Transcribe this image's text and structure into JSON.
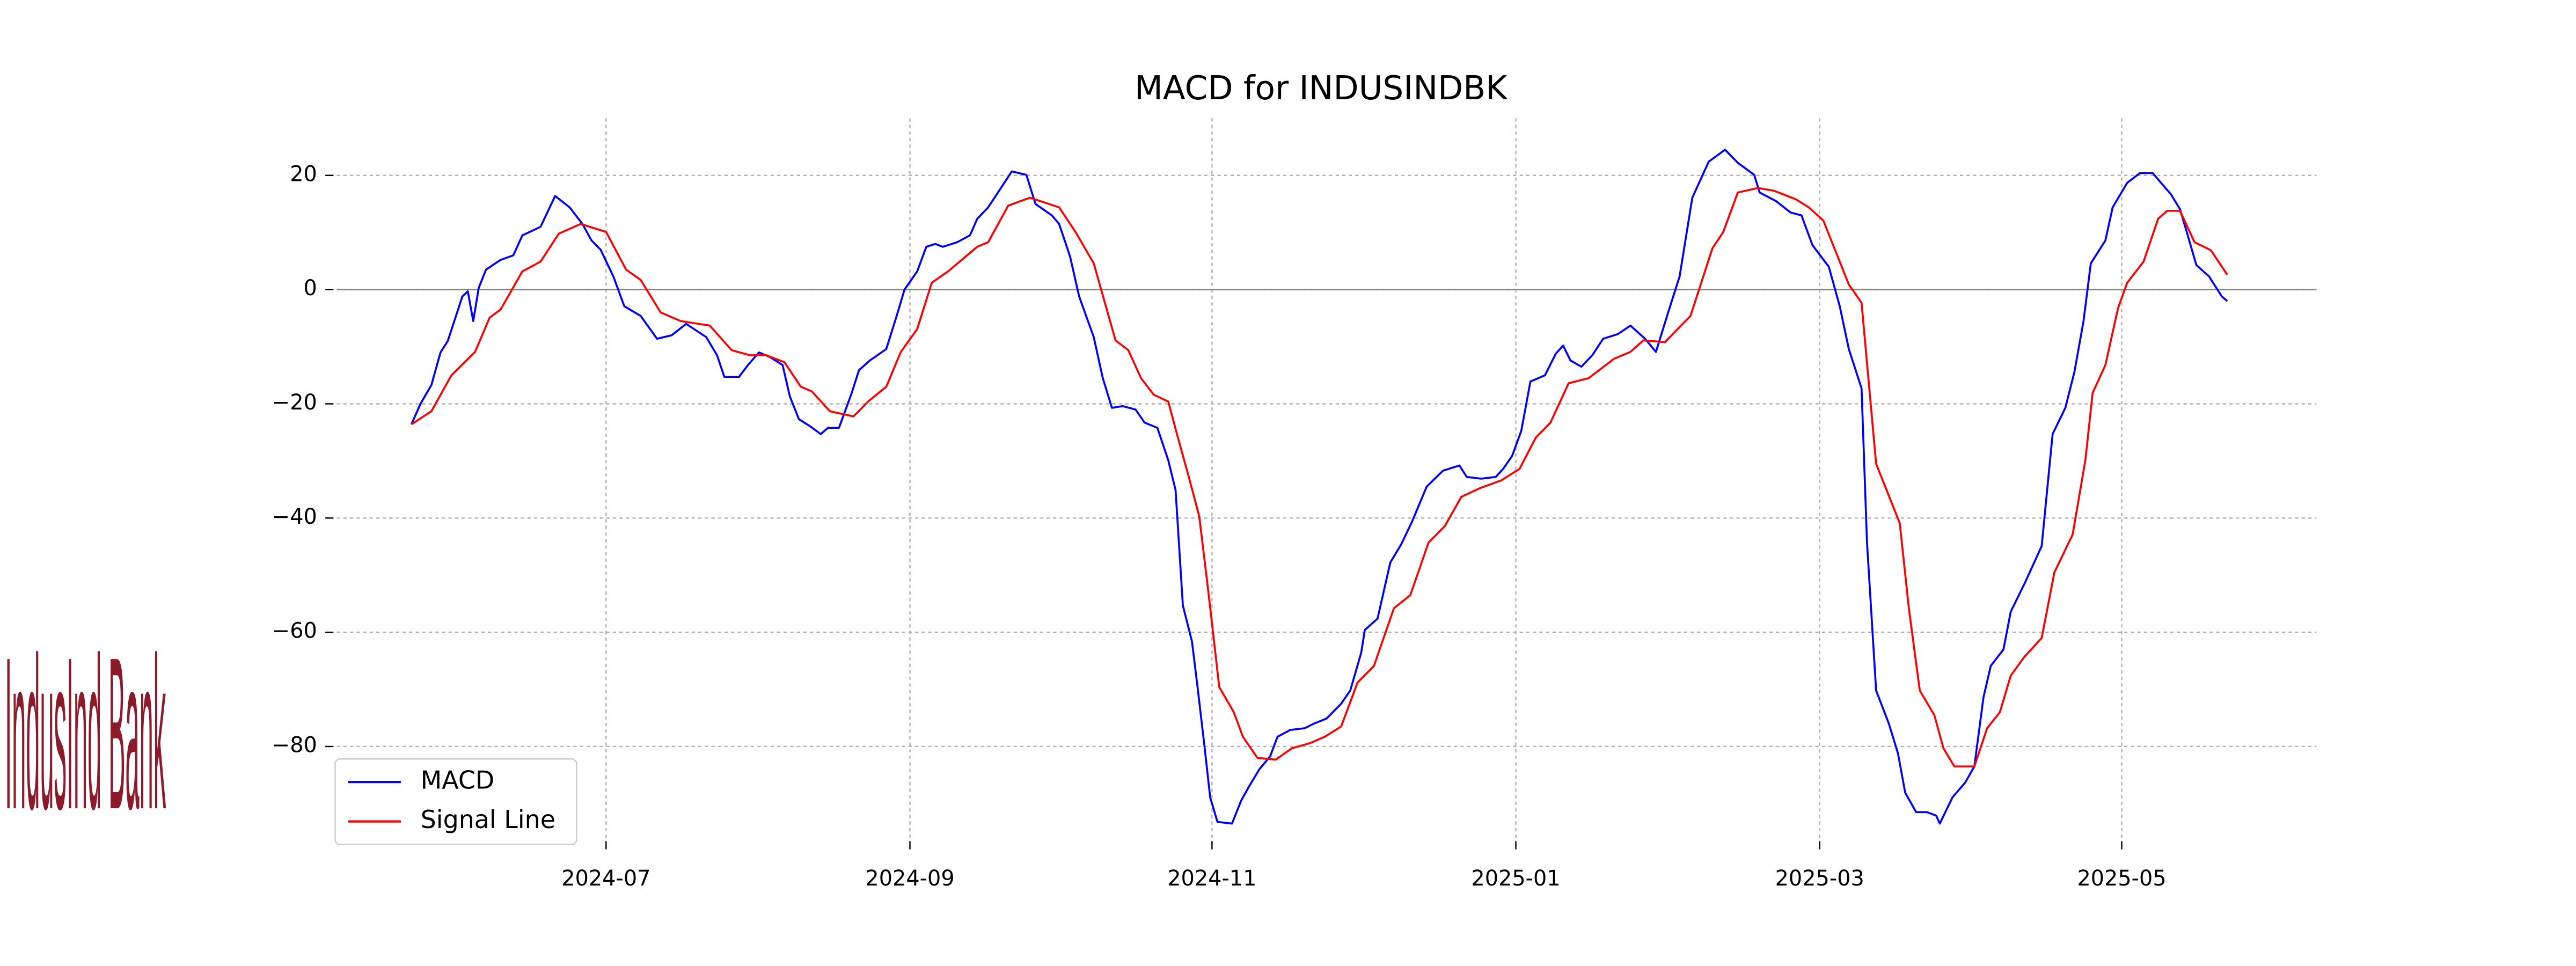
{
  "chart_data": {
    "type": "line",
    "title": "MACD for INDUSINDBK",
    "logo_text": "IndusInd Bank",
    "xlim": [
      2024.352,
      2025.44
    ],
    "ylim": [
      -96,
      30
    ],
    "xticks": [
      {
        "value": 2024.5,
        "label": "2024-07"
      },
      {
        "value": 2024.667,
        "label": "2024-09"
      },
      {
        "value": 2024.833,
        "label": "2024-11"
      },
      {
        "value": 2025.0,
        "label": "2025-01"
      },
      {
        "value": 2025.167,
        "label": "2025-03"
      },
      {
        "value": 2025.333,
        "label": "2025-05"
      }
    ],
    "yticks": [
      {
        "value": -80,
        "label": "−80"
      },
      {
        "value": -60,
        "label": "−60"
      },
      {
        "value": -40,
        "label": "−40"
      },
      {
        "value": -20,
        "label": "−20"
      },
      0,
      20
    ],
    "hlines": [
      0
    ],
    "grid": true,
    "legend": "lower left",
    "series": [
      {
        "name": "MACD",
        "color": "#0000ff",
        "x": [
          2024.393,
          2024.398,
          2024.404,
          2024.409,
          2024.413,
          2024.421,
          2024.424,
          2024.427,
          2024.43,
          2024.434,
          2024.442,
          2024.449,
          2024.454,
          2024.464,
          2024.472,
          2024.48,
          2024.487,
          2024.492,
          2024.497,
          2024.504,
          2024.51,
          2024.519,
          2024.528,
          2024.536,
          2024.544,
          2024.555,
          2024.561,
          2024.565,
          2024.573,
          2024.578,
          2024.584,
          2024.59,
          2024.597,
          2024.601,
          2024.606,
          2024.612,
          2024.618,
          2024.622,
          2024.628,
          2024.635,
          2024.639,
          2024.645,
          2024.654,
          2024.66,
          2024.664,
          2024.671,
          2024.676,
          2024.681,
          2024.685,
          2024.693,
          2024.7,
          2024.704,
          2024.71,
          2024.717,
          2024.723,
          2024.731,
          2024.736,
          2024.745,
          2024.749,
          2024.755,
          2024.76,
          2024.768,
          2024.773,
          2024.778,
          2024.784,
          2024.791,
          2024.796,
          2024.803,
          2024.809,
          2024.813,
          2024.817,
          2024.822,
          2024.825,
          2024.829,
          2024.832,
          2024.836,
          2024.844,
          2024.849,
          2024.853,
          2024.859,
          2024.865,
          2024.869,
          2024.876,
          2024.884,
          2024.889,
          2024.896,
          2024.904,
          2024.909,
          2024.915,
          2024.917,
          2024.924,
          2024.931,
          2024.937,
          2024.943,
          2024.951,
          2024.96,
          2024.969,
          2024.973,
          2024.981,
          2024.989,
          2024.993,
          2024.998,
          2025.003,
          2025.008,
          2025.016,
          2025.022,
          2025.026,
          2025.03,
          2025.036,
          2025.042,
          2025.048,
          2025.056,
          2025.063,
          2025.071,
          2025.077,
          2025.084,
          2025.09,
          2025.097,
          2025.106,
          2025.115,
          2025.122,
          2025.131,
          2025.134,
          2025.143,
          2025.151,
          2025.157,
          2025.163,
          2025.172,
          2025.178,
          2025.183,
          2025.19,
          2025.193,
          2025.198,
          2025.205,
          2025.21,
          2025.214,
          2025.22,
          2025.226,
          2025.231,
          2025.233,
          2025.24,
          2025.247,
          2025.252,
          2025.257,
          2025.261,
          2025.268,
          2025.272,
          2025.28,
          2025.289,
          2025.295,
          2025.302,
          2025.307,
          2025.312,
          2025.316,
          2025.324,
          2025.328,
          2025.336,
          2025.343,
          2025.35,
          2025.353,
          2025.36,
          2025.365,
          2025.369,
          2025.374,
          2025.381,
          2025.388,
          2025.391
        ],
        "values": [
          -23.6,
          -20,
          -16.7,
          -11,
          -9,
          -1.2,
          -0.3,
          -5.5,
          0.3,
          3.5,
          5.2,
          6,
          9.5,
          11,
          16.4,
          14.4,
          11.5,
          8.6,
          7,
          2.3,
          -2.9,
          -4.6,
          -8.6,
          -8,
          -6,
          -8.3,
          -11.5,
          -15.3,
          -15.3,
          -13.2,
          -11,
          -11.8,
          -13.2,
          -18.7,
          -22.7,
          -23.9,
          -25.3,
          -24.2,
          -24.2,
          -18.1,
          -14.1,
          -12.4,
          -10.4,
          -4.3,
          0,
          3.2,
          7.5,
          8,
          7.5,
          8.3,
          9.5,
          12.4,
          14.4,
          17.8,
          20.7,
          20.1,
          15,
          13,
          11.5,
          5.8,
          -1.2,
          -8.3,
          -15.5,
          -20.7,
          -20.4,
          -21,
          -23.3,
          -24.2,
          -29.9,
          -35.1,
          -55.3,
          -61.6,
          -69.4,
          -80.3,
          -88.9,
          -93.2,
          -93.5,
          -89.5,
          -87.2,
          -84,
          -81.7,
          -78.3,
          -77.1,
          -76.8,
          -76,
          -75.1,
          -72.5,
          -70.2,
          -63.6,
          -59.6,
          -57.6,
          -47.8,
          -44.6,
          -40.6,
          -34.5,
          -31.7,
          -30.8,
          -32.8,
          -33.1,
          -32.8,
          -31.4,
          -29.1,
          -24.7,
          -16.1,
          -15,
          -11.2,
          -9.8,
          -12.4,
          -13.5,
          -11.5,
          -8.6,
          -7.8,
          -6.3,
          -8.6,
          -10.9,
          -3.7,
          2.3,
          16.1,
          22.4,
          24.5,
          22.2,
          20.1,
          17,
          15.5,
          13.5,
          13,
          7.8,
          4,
          -2.9,
          -10.4,
          -17.3,
          -44.3,
          -70.2,
          -76,
          -81.2,
          -88.1,
          -91.5,
          -91.5,
          -92.1,
          -93.5,
          -88.9,
          -86.3,
          -83.5,
          -71.4,
          -65.9,
          -63,
          -56.4,
          -51.2,
          -44.9,
          -25.3,
          -20.7,
          -14.4,
          -5.5,
          4.6,
          8.6,
          14.4,
          18.7,
          20.4,
          20.4,
          19.3,
          16.7,
          14.1,
          9.8,
          4.3,
          2.3,
          -1.2,
          -2
        ]
      },
      {
        "name": "Signal Line",
        "color": "#ff0000",
        "x": [
          2024.393,
          2024.404,
          2024.415,
          2024.428,
          2024.436,
          2024.442,
          2024.454,
          2024.464,
          2024.474,
          2024.486,
          2024.5,
          2024.511,
          2024.519,
          2024.53,
          2024.541,
          2024.557,
          2024.569,
          2024.579,
          2024.588,
          2024.598,
          2024.607,
          2024.613,
          2024.623,
          2024.636,
          2024.644,
          2024.654,
          2024.662,
          2024.671,
          2024.679,
          2024.688,
          2024.704,
          2024.71,
          2024.721,
          2024.733,
          2024.749,
          2024.758,
          2024.768,
          2024.78,
          2024.787,
          2024.794,
          2024.801,
          2024.809,
          2024.814,
          2024.82,
          2024.826,
          2024.831,
          2024.837,
          2024.845,
          2024.85,
          2024.858,
          2024.868,
          2024.877,
          2024.887,
          2024.895,
          2024.904,
          2024.913,
          2024.922,
          2024.933,
          2024.942,
          2024.952,
          2024.961,
          2024.97,
          2024.98,
          2024.992,
          2025.002,
          2025.011,
          2025.019,
          2025.029,
          2025.04,
          2025.054,
          2025.063,
          2025.07,
          2025.082,
          2025.088,
          2025.096,
          2025.108,
          2025.114,
          2025.122,
          2025.133,
          2025.142,
          2025.154,
          2025.161,
          2025.169,
          2025.183,
          2025.19,
          2025.198,
          2025.211,
          2025.216,
          2025.222,
          2025.23,
          2025.235,
          2025.241,
          2025.252,
          2025.259,
          2025.266,
          2025.272,
          2025.279,
          2025.289,
          2025.296,
          2025.306,
          2025.313,
          2025.317,
          2025.324,
          2025.331,
          2025.336,
          2025.345,
          2025.353,
          2025.358,
          2025.365,
          2025.373,
          2025.382,
          2025.391
        ],
        "values": [
          -23.6,
          -21.3,
          -15,
          -10.9,
          -4.9,
          -3.5,
          3.2,
          4.9,
          9.8,
          11.5,
          10.1,
          3.5,
          1.7,
          -4,
          -5.5,
          -6.3,
          -10.6,
          -11.5,
          -11.5,
          -12.7,
          -17,
          -17.8,
          -21.3,
          -22.2,
          -19.6,
          -17,
          -10.9,
          -6.9,
          1.2,
          3.2,
          7.5,
          8.3,
          14.7,
          16.1,
          14.4,
          10.1,
          4.6,
          -8.9,
          -10.6,
          -15.5,
          -18.4,
          -19.6,
          -25.6,
          -32.5,
          -39.7,
          -52.9,
          -69.6,
          -74,
          -78.3,
          -82,
          -82.3,
          -80.3,
          -79.4,
          -78.3,
          -76.5,
          -68.8,
          -65.9,
          -55.8,
          -53.5,
          -44.3,
          -41.4,
          -36.3,
          -34.8,
          -33.4,
          -31.4,
          -25.9,
          -23.3,
          -16.4,
          -15.5,
          -12.1,
          -10.9,
          -8.9,
          -9.2,
          -7.2,
          -4.6,
          7.2,
          10.1,
          17,
          17.8,
          17.3,
          15.8,
          14.4,
          12.1,
          0.9,
          -2.3,
          -30.5,
          -40.9,
          -55.8,
          -70.2,
          -74.5,
          -80.3,
          -83.5,
          -83.5,
          -76.8,
          -74,
          -67.6,
          -64.5,
          -61,
          -49.5,
          -42.9,
          -29.9,
          -18.1,
          -13.2,
          -3.2,
          1.2,
          4.9,
          12.4,
          13.8,
          13.8,
          8.3,
          6.9,
          2.6
        ]
      }
    ]
  }
}
